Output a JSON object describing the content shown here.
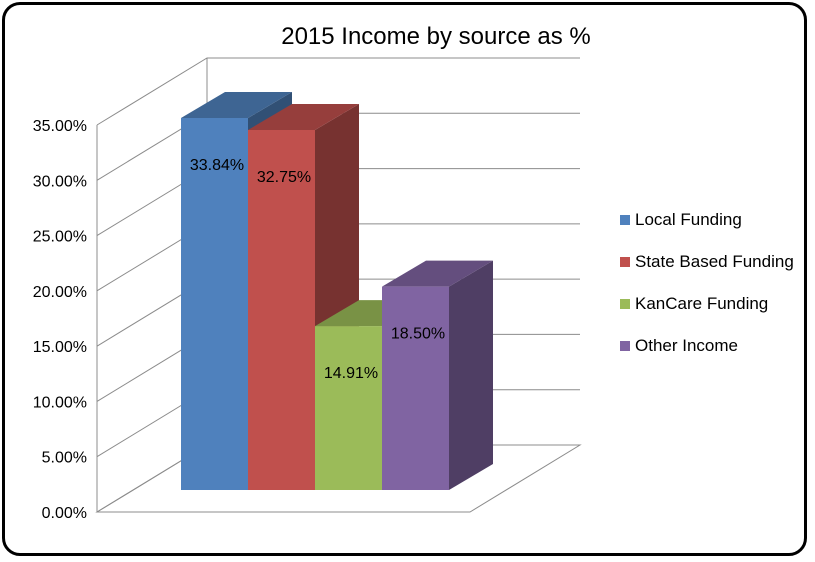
{
  "chart_data": {
    "type": "bar",
    "title": "2015 Income by source as %",
    "categories": [
      "Local Funding",
      "State Based Funding",
      "KanCare Funding",
      "Other Income"
    ],
    "values": [
      33.84,
      32.75,
      14.91,
      18.5
    ],
    "data_labels": [
      "33.84%",
      "32.75%",
      "14.91%",
      "18.50%"
    ],
    "ylim": [
      0,
      35
    ],
    "yticks": [
      "0.00%",
      "5.00%",
      "10.00%",
      "15.00%",
      "20.00%",
      "25.00%",
      "30.00%",
      "35.00%"
    ],
    "grid": true,
    "legend_position": "right",
    "colors": [
      "#4f81bd",
      "#c0504d",
      "#9bbb59",
      "#8064a2"
    ],
    "style": "3d"
  }
}
